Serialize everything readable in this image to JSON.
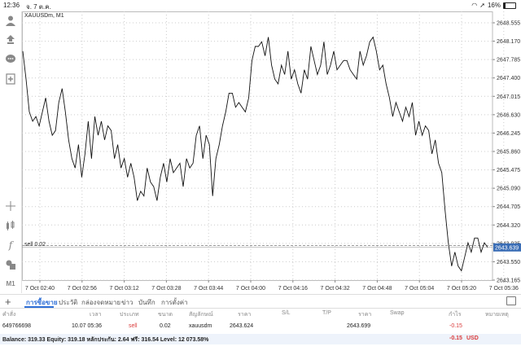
{
  "status_bar": {
    "time": "12:36",
    "date": "จ. 7 ต.ค.",
    "battery": "16%",
    "battery_level": 0.16
  },
  "chart": {
    "symbol": "XAUUSDm, M1",
    "sell_label": "sell 0.02",
    "price_axis": [
      "2648.555",
      "2648.170",
      "2647.785",
      "2647.400",
      "2647.015",
      "2646.630",
      "2646.245",
      "2645.860",
      "2645.475",
      "2645.090",
      "2644.705",
      "2644.320",
      "2643.935",
      "2643.550",
      "2643.165"
    ],
    "current_price": "2643.639",
    "time_axis": [
      "7 Oct 02:40",
      "7 Oct 02:56",
      "7 Oct 03:12",
      "7 Oct 03:28",
      "7 Oct 03:44",
      "7 Oct 04:00",
      "7 Oct 04:16",
      "7 Oct 04:32",
      "7 Oct 04:48",
      "7 Oct 05:04",
      "7 Oct 05:20",
      "7 Oct 05:36"
    ],
    "y_range": [
      2643.0,
      2648.75
    ],
    "sell_line_price": 2643.74,
    "prices": [
      2647.9,
      2647.3,
      2646.6,
      2646.4,
      2646.5,
      2646.3,
      2646.6,
      2646.9,
      2646.4,
      2646.1,
      2646.2,
      2646.8,
      2647.1,
      2646.6,
      2646.0,
      2645.6,
      2645.4,
      2645.9,
      2645.2,
      2645.7,
      2646.4,
      2645.6,
      2646.5,
      2646.1,
      2646.4,
      2646.0,
      2646.3,
      2646.2,
      2645.6,
      2645.9,
      2645.4,
      2645.6,
      2645.2,
      2645.5,
      2645.2,
      2644.7,
      2644.9,
      2644.8,
      2645.4,
      2645.1,
      2645.0,
      2644.7,
      2645.2,
      2645.5,
      2645.1,
      2645.6,
      2645.3,
      2645.4,
      2645.5,
      2645.0,
      2645.6,
      2645.4,
      2645.5,
      2646.1,
      2646.3,
      2645.6,
      2646.1,
      2645.9,
      2644.8,
      2645.6,
      2645.9,
      2646.3,
      2646.6,
      2647.0,
      2647.0,
      2646.7,
      2646.8,
      2646.7,
      2646.6,
      2646.9,
      2647.7,
      2648.0,
      2648.0,
      2648.1,
      2647.8,
      2648.2,
      2647.6,
      2647.3,
      2647.2,
      2647.6,
      2647.4,
      2647.9,
      2647.3,
      2647.5,
      2647.2,
      2647.0,
      2647.5,
      2647.3,
      2648.0,
      2647.7,
      2647.4,
      2647.6,
      2648.1,
      2647.4,
      2647.6,
      2647.9,
      2647.5,
      2647.6,
      2647.7,
      2647.7,
      2647.5,
      2647.4,
      2647.3,
      2647.9,
      2647.6,
      2647.8,
      2648.1,
      2648.2,
      2647.9,
      2647.5,
      2647.6,
      2647.2,
      2646.9,
      2646.5,
      2646.8,
      2646.6,
      2646.4,
      2646.7,
      2646.5,
      2646.8,
      2646.1,
      2646.4,
      2646.1,
      2646.3,
      2646.2,
      2645.7,
      2646.0,
      2645.5,
      2645.3,
      2644.5,
      2643.8,
      2643.3,
      2643.6,
      2643.3,
      2643.2,
      2643.5,
      2643.8,
      2643.6,
      2643.9,
      2643.9,
      2643.6,
      2643.8,
      2643.7
    ]
  },
  "tabs": {
    "items": [
      "การซื้อขาย",
      "ประวัติ",
      "กล่องจดหมาย",
      "ข่าว",
      "บันทึก",
      "การตั้งค่า"
    ]
  },
  "table": {
    "headers": [
      "คำสั่ง",
      "เวลา",
      "ประเภท",
      "ขนาด",
      "สัญลักษณ์",
      "ราคา",
      "S/L",
      "T/P",
      "ราคา",
      "Swap",
      "กำไร",
      "หมายเหตุ"
    ],
    "row": {
      "order": "649766698",
      "time": "10.07 05:36",
      "type": "sell",
      "size": "0.02",
      "symbol": "xauusdm",
      "open_price": "2643.624",
      "current_price": "2643.699",
      "profit": "-0.15"
    },
    "balance": {
      "text": "Balance: 319.33 Equity: 319.18 หลักประกัน: 2.64 ฟรี: 316.54 Level: 12 073.58%",
      "profit": "-0.15",
      "currency": "USD"
    }
  }
}
